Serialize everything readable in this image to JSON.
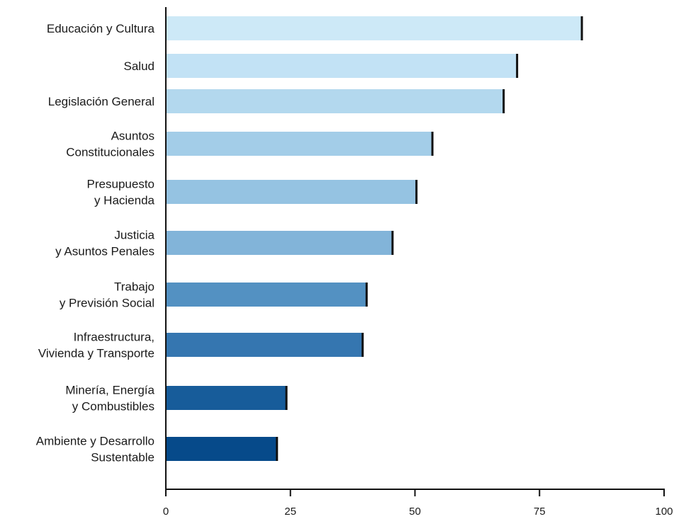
{
  "chart_data": {
    "type": "bar",
    "orientation": "horizontal",
    "categories": [
      [
        "Educación y Cultura"
      ],
      [
        "Salud"
      ],
      [
        "Legislación General"
      ],
      [
        "Asuntos",
        "Constitucionales"
      ],
      [
        "Presupuesto",
        "y Hacienda"
      ],
      [
        "Justicia",
        "y Asuntos Penales"
      ],
      [
        "Trabajo",
        "y Previsión Social"
      ],
      [
        "Infraestructura,",
        "Vivienda y Transporte"
      ],
      [
        "Minería, Energía",
        "y Combustibles"
      ],
      [
        "Ambiente y Desarrollo",
        "Sustentable"
      ]
    ],
    "values": [
      83.5,
      70.5,
      67.8,
      53.5,
      50.3,
      45.5,
      40.3,
      39.5,
      24.2,
      22.3
    ],
    "bar_colors": [
      "#cde9f7",
      "#c2e2f5",
      "#b3d8ee",
      "#a3cde8",
      "#95c3e2",
      "#82b4d9",
      "#5391c2",
      "#3576b0",
      "#175c9a",
      "#064a8a"
    ],
    "xlim": [
      0,
      100
    ],
    "xticks": [
      "0",
      "25",
      "50",
      "75",
      "100"
    ],
    "grid": false,
    "legend": "none"
  }
}
